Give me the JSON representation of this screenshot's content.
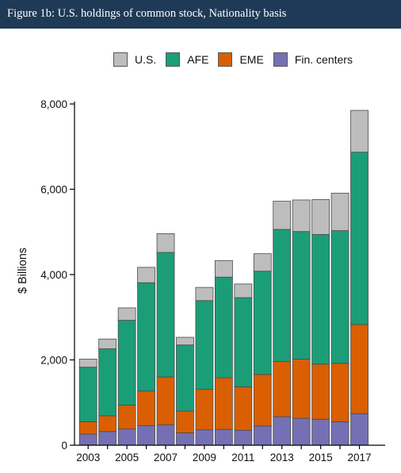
{
  "figure": {
    "title": "Figure 1b: U.S. holdings of common stock, Nationality basis"
  },
  "chart_data": {
    "type": "bar",
    "stacked": true,
    "title": "Figure 1b: U.S. holdings of common stock, Nationality basis",
    "xlabel": "",
    "ylabel": "$ Billions",
    "ylim": [
      0,
      8000
    ],
    "yticks": [
      0,
      2000,
      4000,
      6000,
      8000
    ],
    "ytick_labels": [
      "0",
      "2,000",
      "4,000",
      "6,000",
      "8,000"
    ],
    "categories": [
      "2003",
      "2004",
      "2005",
      "2006",
      "2007",
      "2008",
      "2009",
      "2010",
      "2011",
      "2012",
      "2013",
      "2014",
      "2015",
      "2016",
      "2017"
    ],
    "x_tick_labels": [
      "2003",
      "",
      "2005",
      "",
      "2007",
      "",
      "2009",
      "",
      "2011",
      "",
      "2013",
      "",
      "2015",
      "",
      "2017"
    ],
    "legend_position": "top",
    "legend_order": [
      "U.S.",
      "AFE",
      "EME",
      "Fin. centers"
    ],
    "grid": false,
    "series": [
      {
        "name": "Fin. centers",
        "color": "#7570b3",
        "values": [
          260,
          320,
          380,
          460,
          480,
          290,
          360,
          370,
          350,
          450,
          670,
          630,
          610,
          550,
          740
        ]
      },
      {
        "name": "EME",
        "color": "#d95f02",
        "values": [
          290,
          370,
          560,
          810,
          1120,
          510,
          950,
          1210,
          1020,
          1210,
          1290,
          1390,
          1290,
          1370,
          2090
        ]
      },
      {
        "name": "AFE",
        "color": "#1b9e77",
        "values": [
          1280,
          1570,
          1990,
          2540,
          2920,
          1550,
          2080,
          2360,
          2090,
          2420,
          3100,
          2990,
          3040,
          3110,
          4040
        ]
      },
      {
        "name": "U.S.",
        "color": "#bdbdbd",
        "values": [
          190,
          230,
          290,
          360,
          440,
          180,
          310,
          390,
          320,
          410,
          660,
          740,
          820,
          880,
          980
        ]
      }
    ]
  }
}
